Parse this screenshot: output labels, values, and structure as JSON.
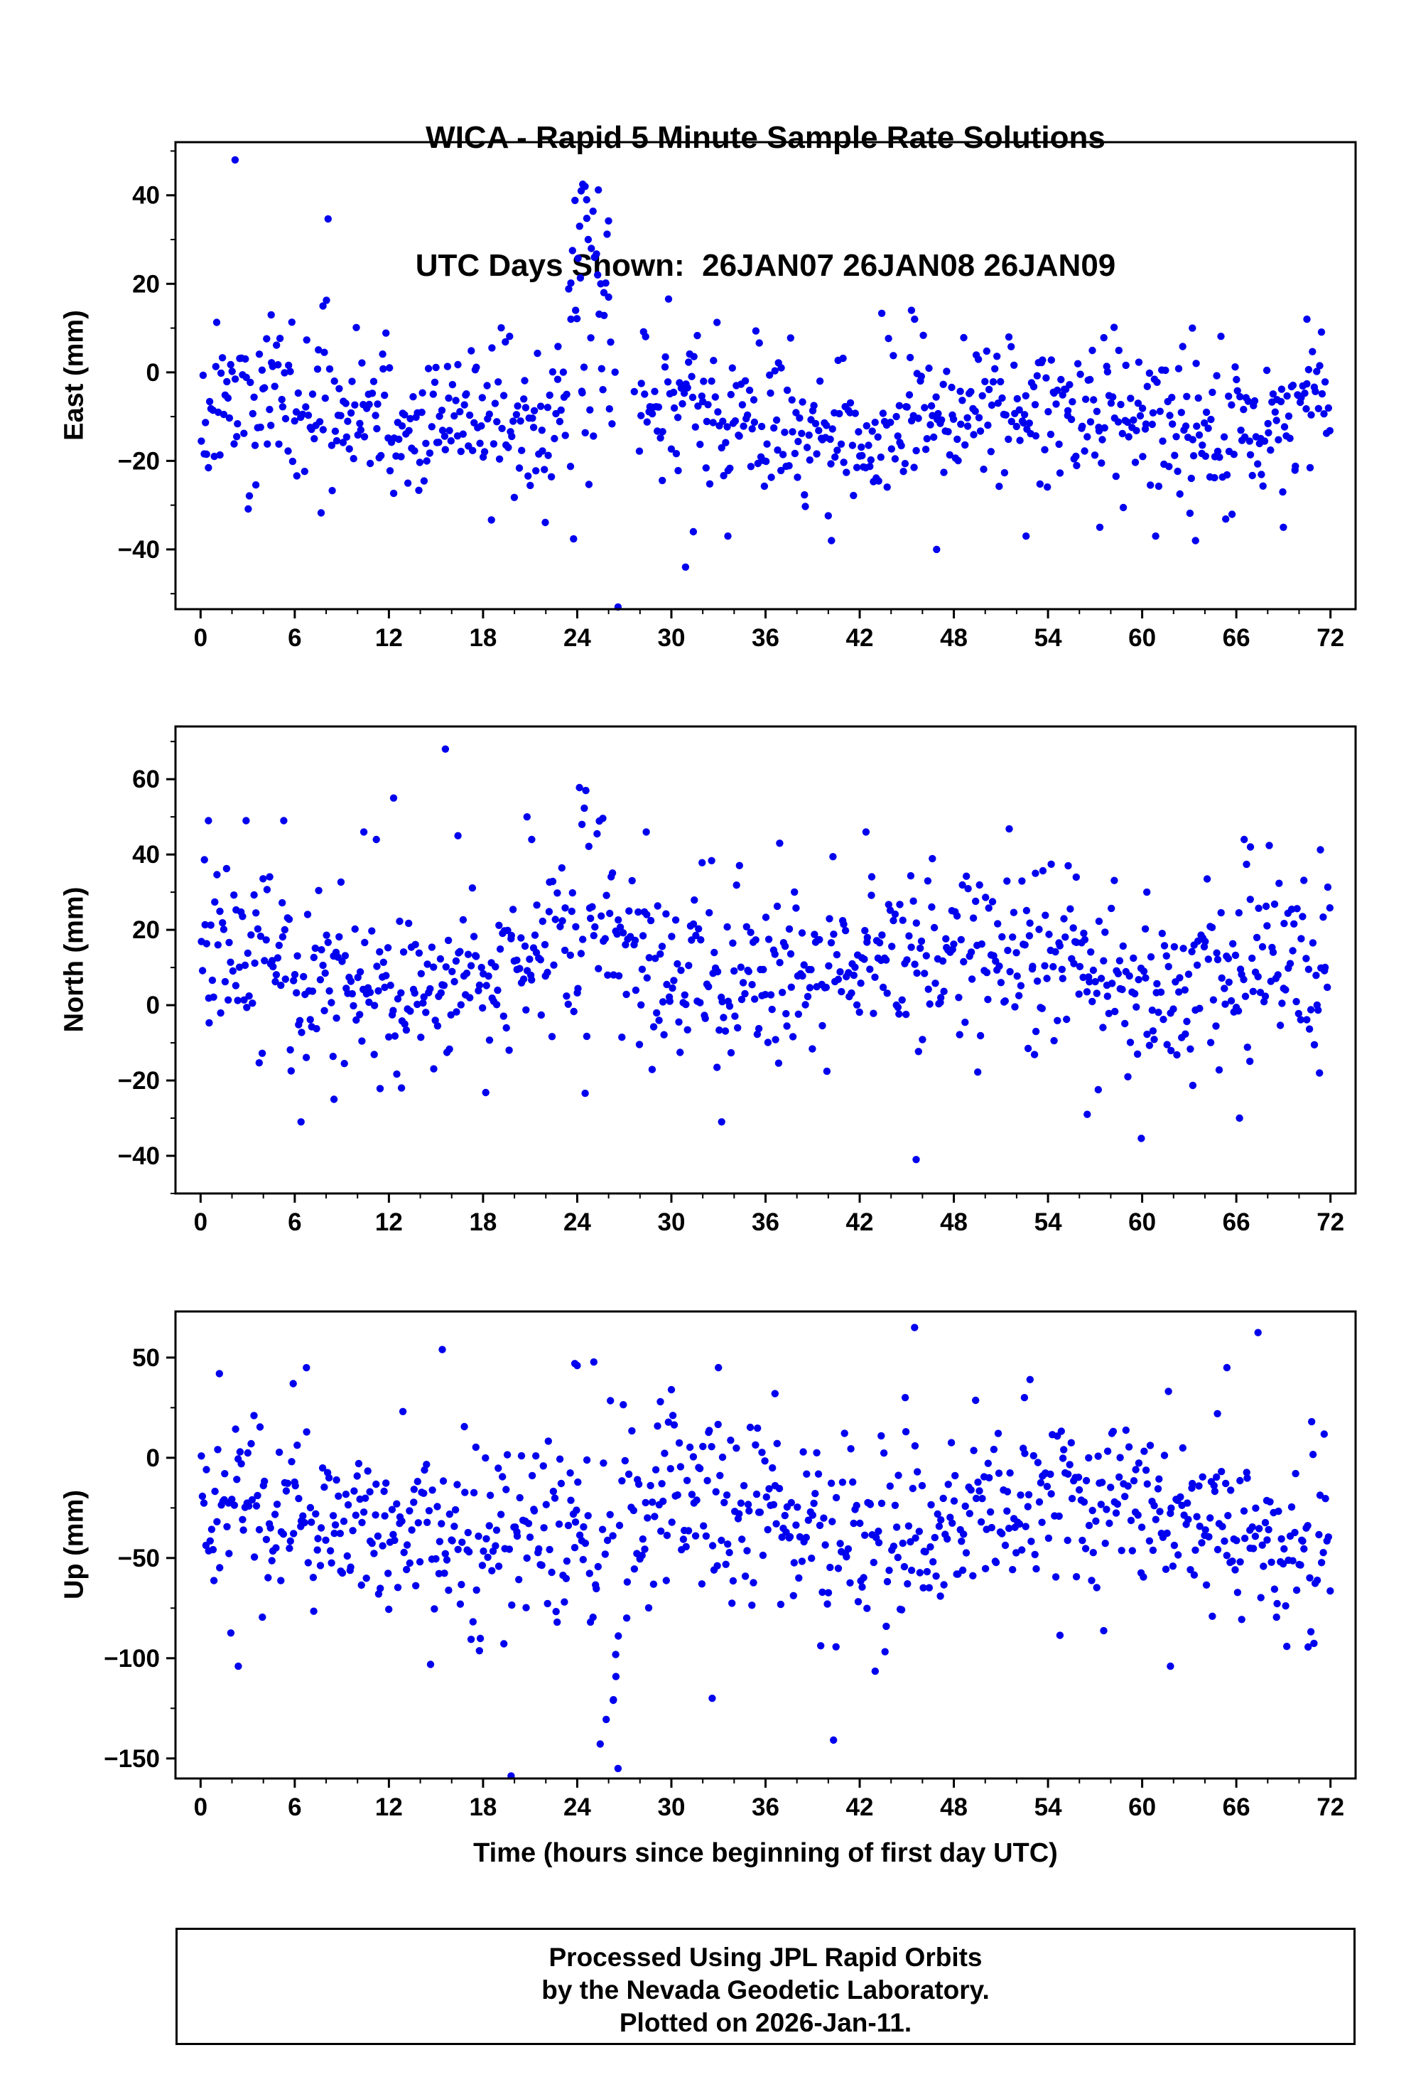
{
  "title": {
    "line1": "WICA - Rapid 5 Minute Sample Rate Solutions",
    "line2": "UTC Days Shown:  26JAN07 26JAN08 26JAN09"
  },
  "axes": {
    "xlabel": "Time (hours since beginning of first day UTC)"
  },
  "style": {
    "point_color": "#0000ee",
    "point_radius": 5.2,
    "frame_color": "#000000"
  },
  "chart_data": [
    {
      "type": "scatter",
      "id": "east",
      "ylabel": "East (mm)",
      "xlim": [
        -1.6,
        73.6
      ],
      "ylim": [
        -53.5,
        52
      ],
      "xticks": [
        0,
        6,
        12,
        18,
        24,
        30,
        36,
        42,
        48,
        54,
        60,
        66,
        72
      ],
      "yticks": [
        40,
        20,
        0,
        -20,
        -40
      ],
      "xminor": 2,
      "yminor": 10,
      "n_points": 800,
      "seed": 11,
      "mean": -10,
      "std": 8,
      "wave": {
        "amp": 3,
        "period": 24,
        "phase": 0.5
      },
      "anomalies": [
        {
          "t0": 23.4,
          "t1": 26.1,
          "dmean": 20,
          "dstd": 13
        }
      ],
      "gaps": [
        {
          "t0": 26.15,
          "t1": 27.9,
          "drop": 0.85
        }
      ],
      "outliers": [
        [
          2.2,
          48
        ],
        [
          24.25,
          41
        ],
        [
          24.35,
          42.5
        ],
        [
          24.5,
          42
        ],
        [
          24.6,
          39
        ],
        [
          24.15,
          33
        ],
        [
          24.7,
          30
        ],
        [
          24.9,
          28
        ],
        [
          25.1,
          26
        ],
        [
          25.3,
          22
        ],
        [
          25.5,
          20
        ],
        [
          25.7,
          18
        ],
        [
          26.0,
          17
        ],
        [
          23.9,
          14
        ],
        [
          23.6,
          12
        ],
        [
          26.6,
          -53
        ],
        [
          30.9,
          -44
        ],
        [
          33.6,
          -37
        ],
        [
          31.4,
          -36
        ],
        [
          40.2,
          -38
        ],
        [
          46.9,
          -40
        ],
        [
          52.6,
          -37
        ],
        [
          57.3,
          -35
        ],
        [
          63.4,
          -38
        ],
        [
          69.0,
          -35
        ],
        [
          45.3,
          14
        ],
        [
          45.5,
          12
        ],
        [
          63.2,
          10
        ],
        [
          70.5,
          12
        ],
        [
          7.8,
          15
        ],
        [
          4.5,
          13
        ]
      ]
    },
    {
      "type": "scatter",
      "id": "north",
      "ylabel": "North (mm)",
      "xlim": [
        -1.6,
        73.6
      ],
      "ylim": [
        -50,
        74
      ],
      "xticks": [
        0,
        6,
        12,
        18,
        24,
        30,
        36,
        42,
        48,
        54,
        60,
        66,
        72
      ],
      "yticks": [
        60,
        40,
        20,
        0,
        -20,
        -40
      ],
      "xminor": 2,
      "yminor": 10,
      "n_points": 800,
      "seed": 22,
      "mean": 10,
      "std": 11,
      "wave": {
        "amp": 4,
        "period": 24,
        "phase": 1.5
      },
      "anomalies": [
        {
          "t0": 24.1,
          "t1": 26.3,
          "dmean": 14,
          "dstd": 10
        }
      ],
      "gaps": [],
      "outliers": [
        [
          15.6,
          68
        ],
        [
          24.55,
          57
        ],
        [
          0.5,
          49
        ],
        [
          2.9,
          49
        ],
        [
          5.3,
          49
        ],
        [
          10.4,
          46
        ],
        [
          11.2,
          44
        ],
        [
          12.3,
          55
        ],
        [
          16.4,
          45
        ],
        [
          20.8,
          50
        ],
        [
          21.1,
          44
        ],
        [
          24.3,
          48
        ],
        [
          28.4,
          46
        ],
        [
          36.9,
          43
        ],
        [
          42.4,
          46
        ],
        [
          53.2,
          35
        ],
        [
          55.8,
          34
        ],
        [
          60.3,
          30
        ],
        [
          66.5,
          44
        ],
        [
          66.9,
          42
        ],
        [
          45.6,
          -41
        ],
        [
          6.4,
          -31
        ],
        [
          33.2,
          -31
        ],
        [
          56.5,
          -29
        ],
        [
          66.2,
          -30
        ],
        [
          71.3,
          -18
        ],
        [
          12.8,
          -22
        ],
        [
          8.5,
          -25
        ]
      ]
    },
    {
      "type": "scatter",
      "id": "up",
      "ylabel": "Up (mm)",
      "xlim": [
        -1.6,
        73.6
      ],
      "ylim": [
        -160,
        73
      ],
      "xticks": [
        0,
        6,
        12,
        18,
        24,
        30,
        36,
        42,
        48,
        54,
        60,
        66,
        72
      ],
      "yticks": [
        50,
        0,
        -50,
        -100,
        -150
      ],
      "xminor": 2,
      "yminor": 25,
      "n_points": 800,
      "seed": 33,
      "mean": -32,
      "std": 22,
      "wave": {
        "amp": 9,
        "period": 27,
        "phase": 0.9
      },
      "anomalies": [
        {
          "t0": 24.6,
          "t1": 27.3,
          "dmean": -35,
          "dstd": 30
        }
      ],
      "gaps": [],
      "outliers": [
        [
          26.6,
          -155
        ],
        [
          26.3,
          -121
        ],
        [
          32.6,
          -120
        ],
        [
          2.4,
          -104
        ],
        [
          61.8,
          -104
        ],
        [
          45.5,
          65
        ],
        [
          15.4,
          54
        ],
        [
          23.85,
          47
        ],
        [
          24.0,
          46
        ],
        [
          1.2,
          42
        ],
        [
          33.0,
          45
        ],
        [
          65.4,
          45
        ],
        [
          5.9,
          37
        ],
        [
          30.0,
          34
        ],
        [
          52.5,
          30
        ],
        [
          70.8,
          18
        ],
        [
          36.6,
          32
        ],
        [
          44.9,
          30
        ],
        [
          29.3,
          28
        ],
        [
          64.8,
          22
        ]
      ]
    }
  ],
  "footer": {
    "line1": "Processed Using JPL Rapid Orbits",
    "line2": "by the Nevada Geodetic Laboratory.",
    "line3": "Plotted on 2026-Jan-11."
  }
}
